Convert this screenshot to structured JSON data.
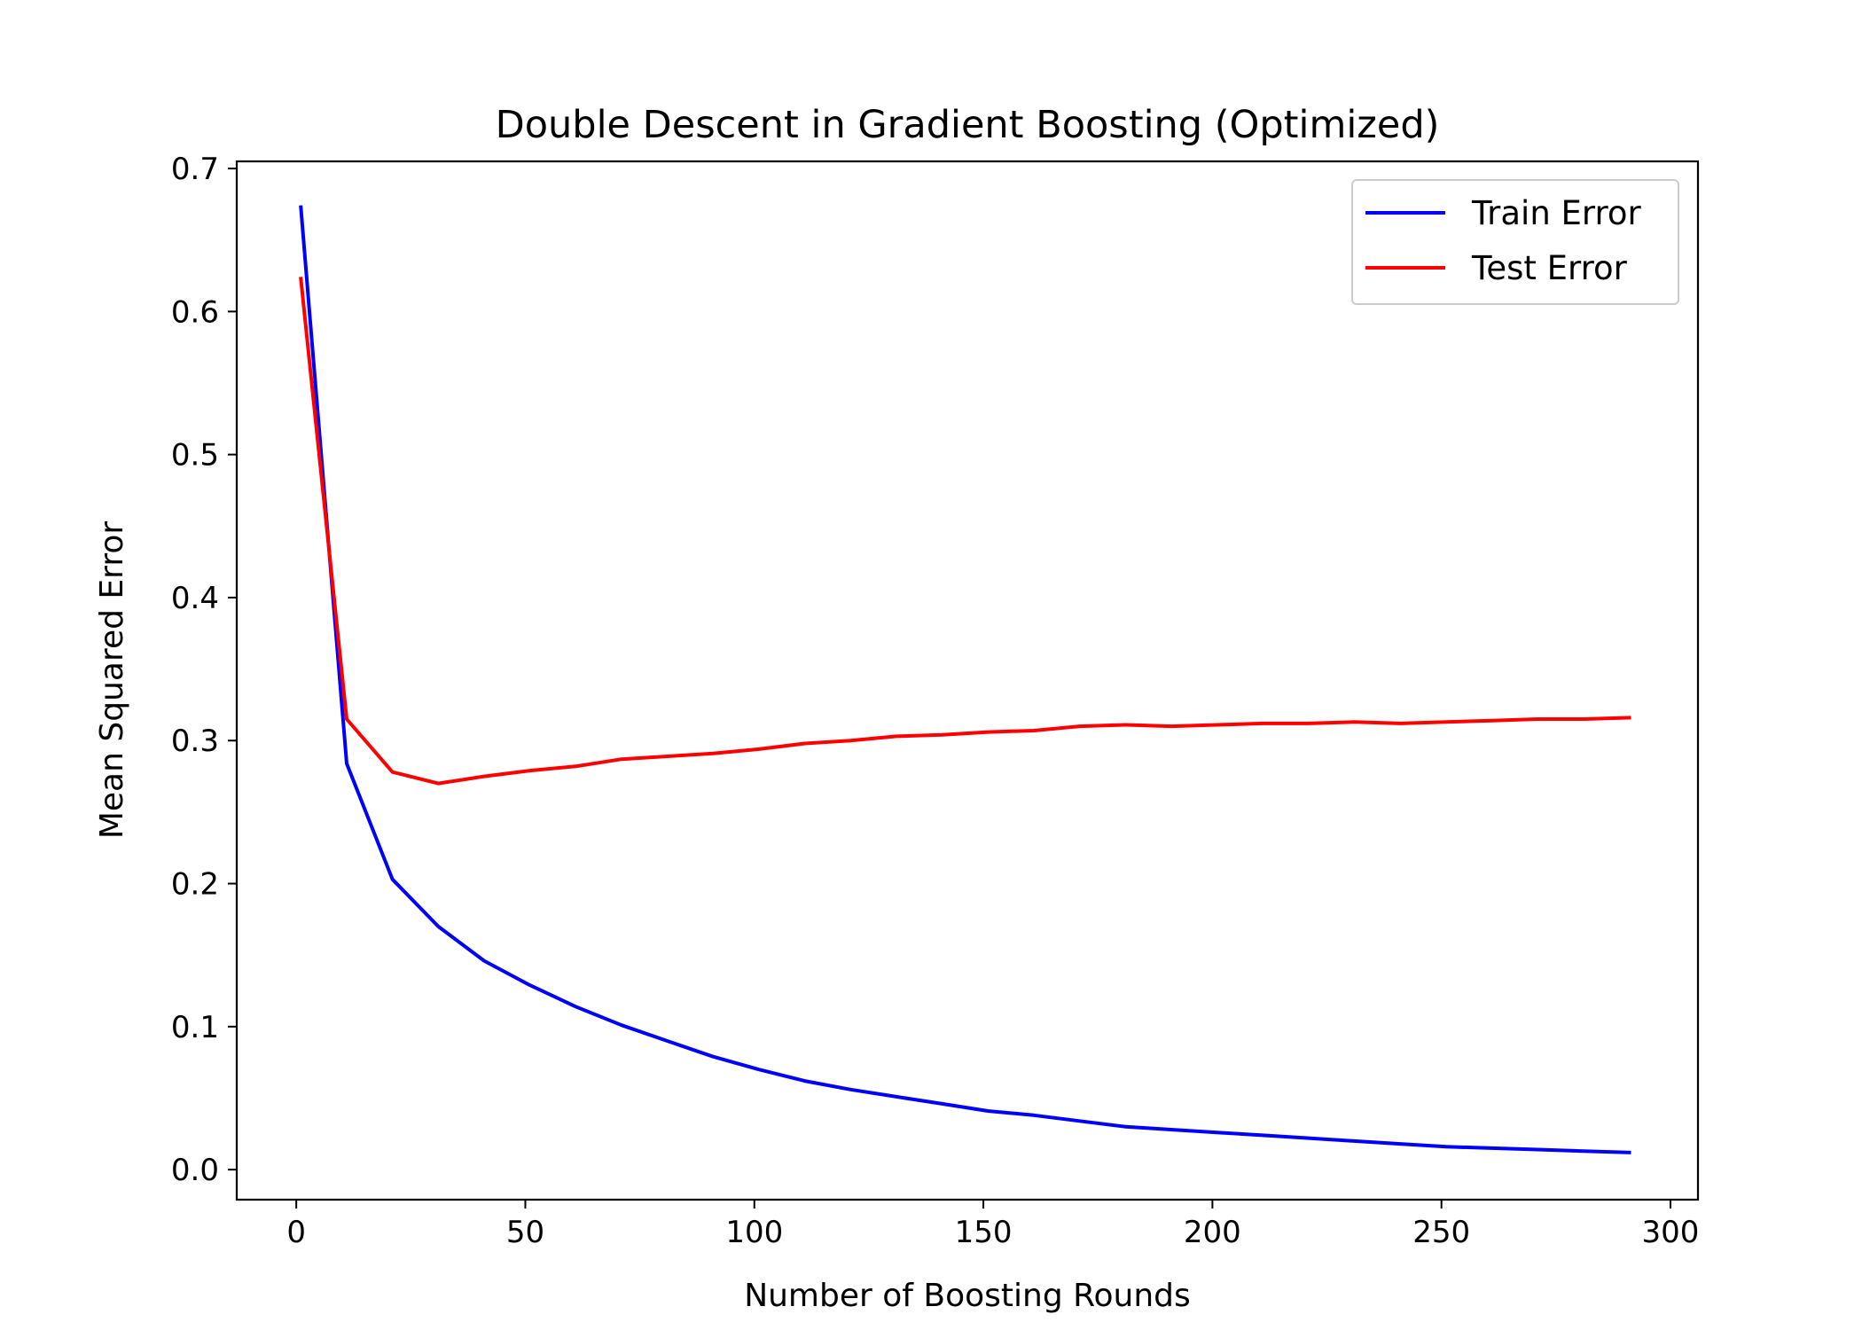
{
  "chart_data": {
    "type": "line",
    "title": "Double Descent in Gradient Boosting (Optimized)",
    "xlabel": "Number of Boosting Rounds",
    "ylabel": "Mean Squared Error",
    "xlim": [
      -13,
      306
    ],
    "ylim": [
      -0.021,
      0.705
    ],
    "xticks": [
      0,
      50,
      100,
      150,
      200,
      250,
      300
    ],
    "yticks": [
      0.0,
      0.1,
      0.2,
      0.3,
      0.4,
      0.5,
      0.6,
      0.7
    ],
    "grid": false,
    "legend_position": "top-right",
    "x": [
      1,
      11,
      21,
      31,
      41,
      51,
      61,
      71,
      81,
      91,
      101,
      111,
      121,
      131,
      141,
      151,
      161,
      171,
      181,
      191,
      201,
      211,
      221,
      231,
      241,
      251,
      261,
      271,
      281,
      291
    ],
    "series": [
      {
        "name": "Train Error",
        "color": "#0000ff",
        "values": [
          0.673,
          0.284,
          0.203,
          0.17,
          0.146,
          0.129,
          0.114,
          0.101,
          0.09,
          0.079,
          0.07,
          0.062,
          0.056,
          0.051,
          0.046,
          0.041,
          0.038,
          0.034,
          0.03,
          0.028,
          0.026,
          0.024,
          0.022,
          0.02,
          0.018,
          0.016,
          0.015,
          0.014,
          0.013,
          0.012
        ]
      },
      {
        "name": "Test Error",
        "color": "#ff0000",
        "values": [
          0.623,
          0.315,
          0.278,
          0.27,
          0.275,
          0.279,
          0.282,
          0.287,
          0.289,
          0.291,
          0.294,
          0.298,
          0.3,
          0.303,
          0.304,
          0.306,
          0.307,
          0.31,
          0.311,
          0.31,
          0.311,
          0.312,
          0.312,
          0.313,
          0.312,
          0.313,
          0.314,
          0.315,
          0.315,
          0.316
        ]
      }
    ]
  }
}
